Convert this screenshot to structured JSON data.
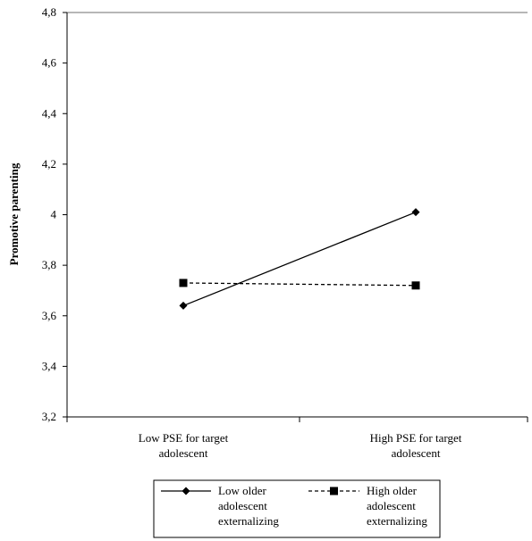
{
  "chart_data": {
    "type": "line",
    "ylabel": "Promotive parenting",
    "ylim": [
      3.2,
      4.8
    ],
    "ytick_labels": [
      "3,2",
      "3,4",
      "3,6",
      "3,8",
      "4",
      "4,2",
      "4,4",
      "4,6",
      "4,8"
    ],
    "categories": [
      [
        "Low PSE for target",
        "adolescent"
      ],
      [
        "High PSE for target",
        "adolescent"
      ]
    ],
    "grid": false,
    "legend_position": "bottom",
    "series": [
      {
        "name": [
          "Low older",
          "adolescent",
          "externalizing"
        ],
        "marker": "diamond",
        "line_style": "solid",
        "values": [
          3.64,
          4.01
        ]
      },
      {
        "name": [
          "High older",
          "adolescent",
          "externalizing"
        ],
        "marker": "square",
        "line_style": "dashed",
        "values": [
          3.73,
          3.72
        ]
      }
    ]
  }
}
